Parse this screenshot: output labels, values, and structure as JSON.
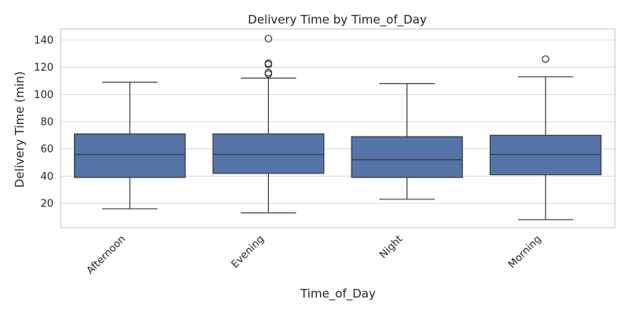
{
  "chart_data": {
    "type": "box",
    "title": "Delivery Time by Time_of_Day",
    "xlabel": "Time_of_Day",
    "ylabel": "Delivery Time (min)",
    "ylim": [
      0,
      148
    ],
    "yticks": [
      20,
      40,
      60,
      80,
      100,
      120,
      140
    ],
    "grid": true,
    "categories": [
      "Afternoon",
      "Evening",
      "Night",
      "Morning"
    ],
    "boxes": [
      {
        "category": "Afternoon",
        "whisker_low": 16,
        "q1": 39,
        "median": 56,
        "q3": 71,
        "whisker_high": 109,
        "outliers": []
      },
      {
        "category": "Evening",
        "whisker_low": 13,
        "q1": 42,
        "median": 56,
        "q3": 71,
        "whisker_high": 112,
        "outliers": [
          115,
          116,
          122,
          123,
          141
        ]
      },
      {
        "category": "Night",
        "whisker_low": 23,
        "q1": 39,
        "median": 52,
        "q3": 69,
        "whisker_high": 108,
        "outliers": []
      },
      {
        "category": "Morning",
        "whisker_low": 8,
        "q1": 41,
        "median": 56,
        "q3": 70,
        "whisker_high": 113,
        "outliers": [
          126
        ]
      }
    ],
    "colors": {
      "box_fill": "#5574a8",
      "line": "#3a3a3a",
      "grid": "#d9d9d9",
      "frame": "#cccccc"
    }
  }
}
